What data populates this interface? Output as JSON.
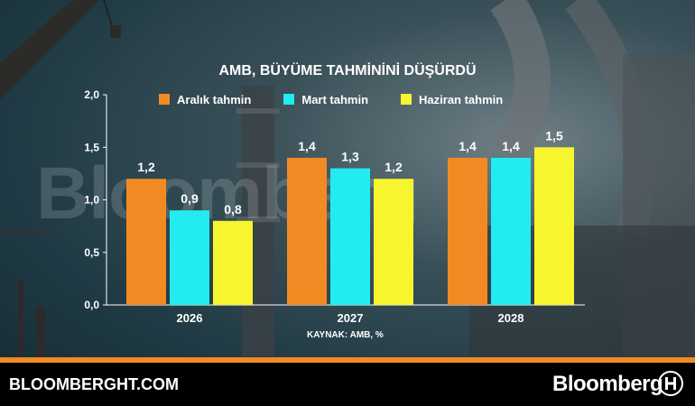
{
  "chart_data": {
    "type": "bar",
    "title": "AMB, BÜYÜME TAHMİNİNİ DÜŞÜRDÜ",
    "categories": [
      "2026",
      "2027",
      "2028"
    ],
    "series": [
      {
        "name": "Aralık tahmin",
        "color": "#f28a23",
        "values": [
          1.2,
          1.4,
          1.4
        ],
        "labels": [
          "1,2",
          "1,4",
          "1,4"
        ]
      },
      {
        "name": "Mart tahmin",
        "color": "#22ecf0",
        "values": [
          0.9,
          1.3,
          1.4
        ],
        "labels": [
          "0,9",
          "1,3",
          "1,4"
        ]
      },
      {
        "name": "Haziran tahmin",
        "color": "#f7f52d",
        "values": [
          0.8,
          1.2,
          1.5
        ],
        "labels": [
          "0,8",
          "1,2",
          "1,5"
        ]
      }
    ],
    "yticks": [
      "0,0",
      "0,5",
      "1,0",
      "1,5",
      "2,0"
    ],
    "ylim": [
      0,
      2
    ],
    "source": "KAYNAK: AMB, %"
  },
  "watermark": "Bloomberg",
  "footer": {
    "site": "BLOOMBERGHT.COM",
    "brand": "Bloomberg",
    "logo_icon": "bloomberg-ht-logo-icon"
  }
}
